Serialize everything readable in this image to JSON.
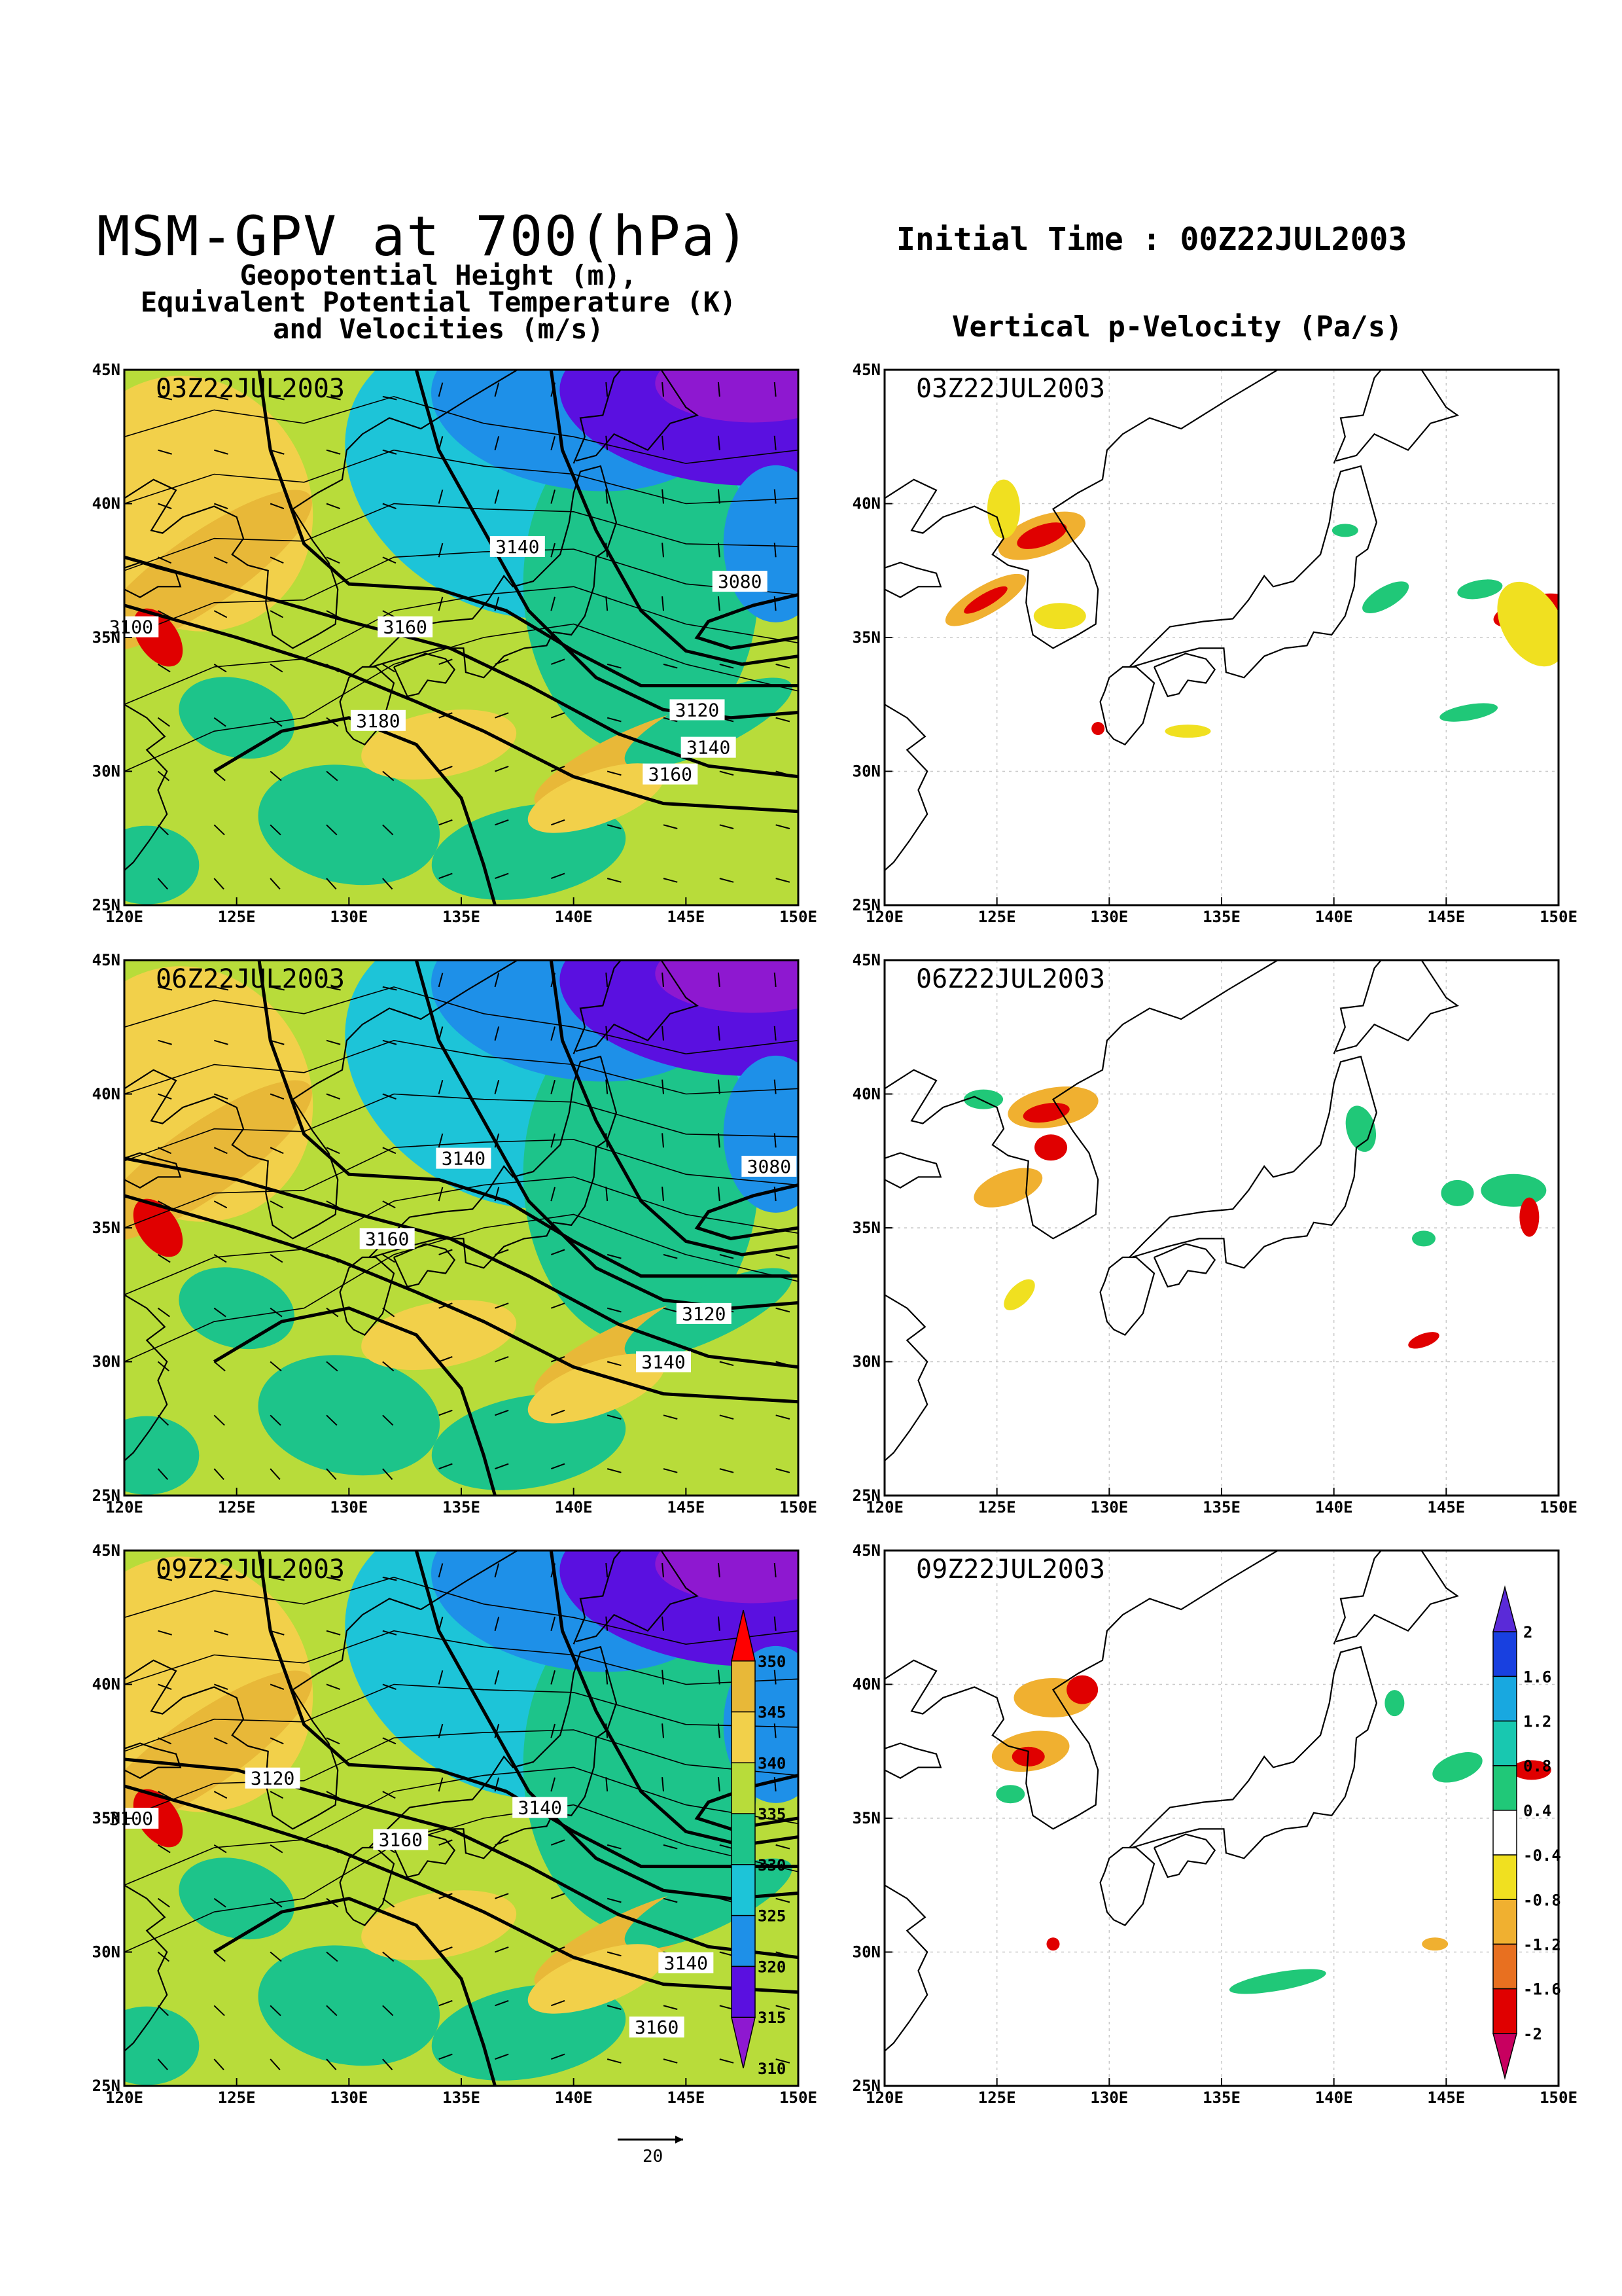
{
  "header": {
    "title": "MSM-GPV at 700(hPa)",
    "subtitle_lines": [
      "Geopotential Height (m),",
      "Equivalent Potential Temperature (K)",
      "and Velocities (m/s)"
    ],
    "initial_time": "Initial Time : 00Z22JUL2003",
    "right_column_title": "Vertical p-Velocity (Pa/s)"
  },
  "axes": {
    "lon_ticks": [
      "120E",
      "125E",
      "130E",
      "135E",
      "140E",
      "145E",
      "150E"
    ],
    "lat_ticks": [
      "25N",
      "30N",
      "35N",
      "40N",
      "45N"
    ],
    "lon_range": [
      120,
      150
    ],
    "lat_range": [
      25,
      45
    ]
  },
  "left_panels": [
    {
      "time_label": "03Z22JUL2003",
      "contour_labels": [
        {
          "text": "3140",
          "lon": 137.5,
          "lat": 38.4
        },
        {
          "text": "3080",
          "lon": 147.4,
          "lat": 37.1
        },
        {
          "text": "3100",
          "lon": 120.3,
          "lat": 35.4
        },
        {
          "text": "3160",
          "lon": 132.5,
          "lat": 35.4
        },
        {
          "text": "3180",
          "lon": 131.3,
          "lat": 31.9
        },
        {
          "text": "3120",
          "lon": 145.5,
          "lat": 32.3
        },
        {
          "text": "3140",
          "lon": 146,
          "lat": 30.9
        },
        {
          "text": "3160",
          "lon": 144.3,
          "lat": 29.9
        }
      ]
    },
    {
      "time_label": "06Z22JUL2003",
      "contour_labels": [
        {
          "text": "3140",
          "lon": 135.1,
          "lat": 37.6
        },
        {
          "text": "3080",
          "lon": 148.7,
          "lat": 37.3
        },
        {
          "text": "3160",
          "lon": 131.7,
          "lat": 34.6
        },
        {
          "text": "3120",
          "lon": 145.8,
          "lat": 31.8
        },
        {
          "text": "3140",
          "lon": 144,
          "lat": 30.0
        }
      ]
    },
    {
      "time_label": "09Z22JUL2003",
      "contour_labels": [
        {
          "text": "3120",
          "lon": 126.6,
          "lat": 36.5
        },
        {
          "text": "3100",
          "lon": 120.3,
          "lat": 35.0
        },
        {
          "text": "3140",
          "lon": 138.5,
          "lat": 35.4
        },
        {
          "text": "3160",
          "lon": 132.3,
          "lat": 34.2
        },
        {
          "text": "3140",
          "lon": 145,
          "lat": 29.6
        },
        {
          "text": "3160",
          "lon": 143.7,
          "lat": 27.2
        }
      ]
    }
  ],
  "right_panels": [
    {
      "time_label": "03Z22JUL2003"
    },
    {
      "time_label": "06Z22JUL2003"
    },
    {
      "time_label": "09Z22JUL2003"
    }
  ],
  "colorbar_theta_e": {
    "labels": [
      "350",
      "345",
      "340",
      "335",
      "330",
      "325",
      "320",
      "315",
      "310"
    ],
    "colors": [
      "#ff0000",
      "#e8b838",
      "#f2d04a",
      "#b8dc3a",
      "#1dc48a",
      "#1dc4d8",
      "#1e90e8",
      "#5a10e0",
      "#8e18d0"
    ]
  },
  "colorbar_omega": {
    "labels": [
      "2",
      "1.6",
      "1.2",
      "0.8",
      "0.4",
      "-0.4",
      "-0.8",
      "-1.2",
      "-1.6",
      "-2"
    ],
    "colors": [
      "#5a2ad8",
      "#1840e0",
      "#18a8e0",
      "#18c8b0",
      "#20c878",
      "#ffffff",
      "#f0e020",
      "#f0b030",
      "#e87020",
      "#e00000",
      "#c80060"
    ]
  },
  "vector_scale": {
    "label": "20"
  },
  "colors": {
    "theta_e": {
      "very_high": "#e00000",
      "high": "#e8b838",
      "warm": "#f2d04a",
      "mid": "#b8dc3a",
      "mid_low": "#1dc48a",
      "low": "#1dc4d8",
      "cool": "#1e90e8",
      "cold": "#5a10e0",
      "very_cold": "#8e18d0"
    },
    "omega_up": "#e00000",
    "omega_mid": "#f0b030",
    "omega_weak": "#f0e020",
    "omega_down": "#20c878"
  }
}
